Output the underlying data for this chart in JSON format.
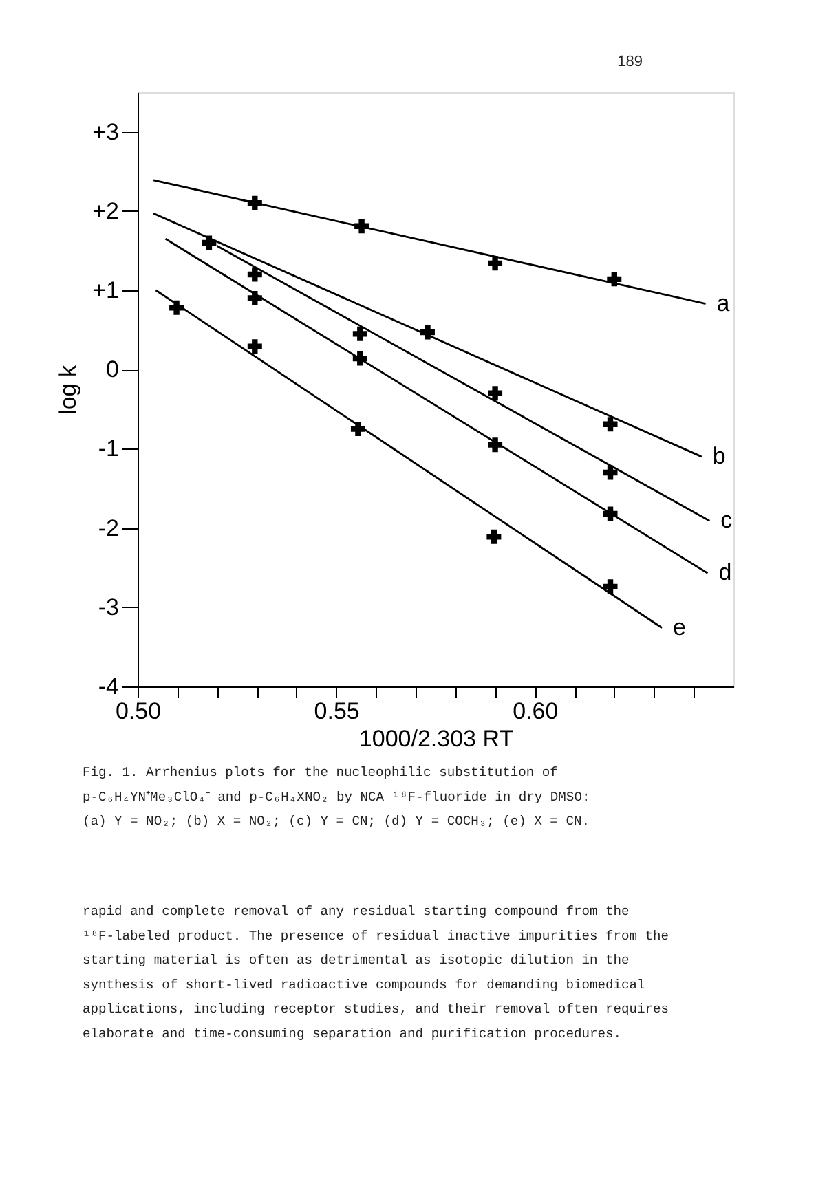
{
  "chart_data": {
    "type": "line",
    "xlabel": "1000/2.303 RT",
    "ylabel": "log k",
    "xlim": [
      0.5,
      0.65
    ],
    "ylim": [
      -4,
      3.5
    ],
    "xticks": [
      {
        "value": 0.5,
        "label": "0.50"
      },
      {
        "value": 0.51,
        "label": null
      },
      {
        "value": 0.52,
        "label": null
      },
      {
        "value": 0.53,
        "label": null
      },
      {
        "value": 0.54,
        "label": null
      },
      0.55,
      {
        "value": 0.56,
        "label": null
      },
      {
        "value": 0.57,
        "label": null
      },
      {
        "value": 0.58,
        "label": null
      },
      {
        "value": 0.59,
        "label": null
      },
      {
        "value": 0.6,
        "label": "0.60"
      },
      {
        "value": 0.61,
        "label": null
      },
      {
        "value": 0.62,
        "label": null
      },
      {
        "value": 0.63,
        "label": null
      },
      {
        "value": 0.64,
        "label": null
      }
    ],
    "yticks": [
      {
        "value": 3,
        "label": "+3"
      },
      {
        "value": 2,
        "label": "+2"
      },
      {
        "value": 1,
        "label": "+1"
      },
      0,
      -1,
      -2,
      -3,
      -4
    ],
    "grid": false,
    "line_style": "solid",
    "series": [
      {
        "type": "line",
        "marker": "none",
        "color": "#000000",
        "x": [
          0.504,
          0.643
        ],
        "values": [
          2.39,
          0.83
        ]
      },
      {
        "name": "a",
        "type": "scatter",
        "marker": "cross",
        "color": "#000000",
        "x": [
          0.5295,
          0.5564,
          0.59,
          0.62
        ],
        "values": [
          2.1,
          1.81,
          1.34,
          1.14
        ]
      },
      {
        "type": "line",
        "marker": "none",
        "color": "#000000",
        "x": [
          0.504,
          0.642
        ],
        "values": [
          1.97,
          -1.1
        ]
      },
      {
        "name": "b",
        "type": "scatter",
        "marker": "cross",
        "color": "#000000",
        "x": [
          0.518,
          0.573,
          0.619
        ],
        "values": [
          1.6,
          0.47,
          -0.69
        ]
      },
      {
        "type": "line",
        "marker": "none",
        "color": "#000000",
        "x": [
          0.52,
          0.644
        ],
        "values": [
          1.56,
          -1.91
        ]
      },
      {
        "name": "c",
        "type": "scatter",
        "marker": "cross",
        "color": "#000000",
        "x": [
          0.5295,
          0.556,
          0.59,
          0.619
        ],
        "values": [
          1.2,
          0.45,
          -0.3,
          -1.3
        ]
      },
      {
        "type": "line",
        "marker": "none",
        "color": "#000000",
        "x": [
          0.507,
          0.6435
        ],
        "values": [
          1.65,
          -2.57
        ]
      },
      {
        "name": "d",
        "type": "scatter",
        "marker": "cross",
        "color": "#000000",
        "x": [
          0.5295,
          0.556,
          0.59,
          0.619
        ],
        "values": [
          0.9,
          0.14,
          -0.95,
          -1.82
        ]
      },
      {
        "type": "line",
        "marker": "none",
        "color": "#000000",
        "x": [
          0.5046,
          0.632
        ],
        "values": [
          1.0,
          -3.26
        ]
      },
      {
        "name": "e",
        "type": "scatter",
        "marker": "cross",
        "color": "#000000",
        "x": [
          0.5098,
          0.5295,
          0.5555,
          0.5897,
          0.619
        ],
        "values": [
          0.78,
          0.29,
          -0.75,
          -2.11,
          -2.74
        ]
      }
    ],
    "annotations": [
      "189",
      "Fig. 1.  Arrhenius plots for the nucleophilic substitution of\n         p-C₆H₄YN⁺Me₃ClO₄⁻ and p-C₆H₄XNO₂ by NCA ¹⁸F-fluoride in dry DMSO:\n         (a) Y = NO₂;  (b) X = NO₂;  (c) Y = CN;  (d) Y = COCH₃; (e) X = CN.",
      "rapid and complete removal of any residual starting compound from the\n¹⁸F-labeled product.  The presence of residual inactive impurities from the\nstarting material is often as detrimental as isotopic dilution in the\nsynthesis of short-lived radioactive compounds for demanding biomedical\napplications, including receptor studies, and their removal often requires\nelaborate and time-consuming separation and purification procedures."
    ]
  }
}
